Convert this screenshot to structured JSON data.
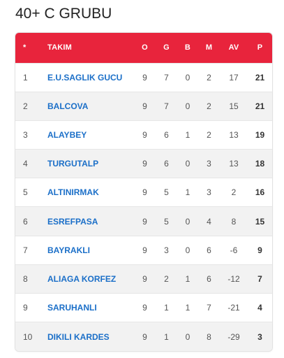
{
  "page": {
    "title": "40+ C GRUBU"
  },
  "table": {
    "headers": {
      "rank": "*",
      "team": "TAKIM",
      "o": "O",
      "g": "G",
      "b": "B",
      "m": "M",
      "av": "AV",
      "p": "P"
    },
    "rows": [
      {
        "rank": "1",
        "team": "E.U.SAGLIK GUCU",
        "o": "9",
        "g": "7",
        "b": "0",
        "m": "2",
        "av": "17",
        "p": "21"
      },
      {
        "rank": "2",
        "team": "BALCOVA",
        "o": "9",
        "g": "7",
        "b": "0",
        "m": "2",
        "av": "15",
        "p": "21"
      },
      {
        "rank": "3",
        "team": "ALAYBEY",
        "o": "9",
        "g": "6",
        "b": "1",
        "m": "2",
        "av": "13",
        "p": "19"
      },
      {
        "rank": "4",
        "team": "TURGUTALP",
        "o": "9",
        "g": "6",
        "b": "0",
        "m": "3",
        "av": "13",
        "p": "18"
      },
      {
        "rank": "5",
        "team": "ALTINIRMAK",
        "o": "9",
        "g": "5",
        "b": "1",
        "m": "3",
        "av": "2",
        "p": "16"
      },
      {
        "rank": "6",
        "team": "ESREFPASA",
        "o": "9",
        "g": "5",
        "b": "0",
        "m": "4",
        "av": "8",
        "p": "15"
      },
      {
        "rank": "7",
        "team": "BAYRAKLI",
        "o": "9",
        "g": "3",
        "b": "0",
        "m": "6",
        "av": "-6",
        "p": "9"
      },
      {
        "rank": "8",
        "team": "ALIAGA KORFEZ",
        "o": "9",
        "g": "2",
        "b": "1",
        "m": "6",
        "av": "-12",
        "p": "7"
      },
      {
        "rank": "9",
        "team": "SARUHANLI",
        "o": "9",
        "g": "1",
        "b": "1",
        "m": "7",
        "av": "-21",
        "p": "4"
      },
      {
        "rank": "10",
        "team": "DIKILI KARDES",
        "o": "9",
        "g": "1",
        "b": "0",
        "m": "8",
        "av": "-29",
        "p": "3"
      }
    ]
  },
  "colors": {
    "header_bg": "#e8243c",
    "team_link": "#1b6fc8"
  }
}
